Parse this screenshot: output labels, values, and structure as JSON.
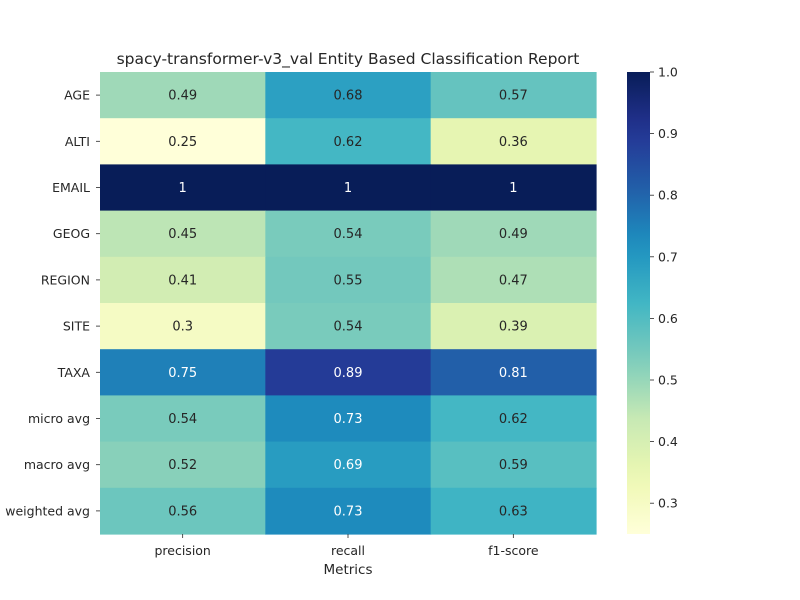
{
  "chart_data": {
    "type": "heatmap",
    "title": "spacy-transformer-v3_val Entity Based Classification Report",
    "xlabel": "Metrics",
    "ylabel": "",
    "columns": [
      "precision",
      "recall",
      "f1-score"
    ],
    "rows": [
      "AGE",
      "ALTI",
      "EMAIL",
      "GEOG",
      "REGION",
      "SITE",
      "TAXA",
      "micro avg",
      "macro avg",
      "weighted avg"
    ],
    "values": [
      [
        0.49,
        0.68,
        0.57
      ],
      [
        0.25,
        0.62,
        0.36
      ],
      [
        1,
        1,
        1
      ],
      [
        0.45,
        0.54,
        0.49
      ],
      [
        0.41,
        0.55,
        0.47
      ],
      [
        0.3,
        0.54,
        0.39
      ],
      [
        0.75,
        0.89,
        0.81
      ],
      [
        0.54,
        0.73,
        0.62
      ],
      [
        0.52,
        0.69,
        0.59
      ],
      [
        0.56,
        0.73,
        0.63
      ]
    ],
    "annotations": [
      [
        "0.49",
        "0.68",
        "0.57"
      ],
      [
        "0.25",
        "0.62",
        "0.36"
      ],
      [
        "1",
        "1",
        "1"
      ],
      [
        "0.45",
        "0.54",
        "0.49"
      ],
      [
        "0.41",
        "0.55",
        "0.47"
      ],
      [
        "0.3",
        "0.54",
        "0.39"
      ],
      [
        "0.75",
        "0.89",
        "0.81"
      ],
      [
        "0.54",
        "0.73",
        "0.62"
      ],
      [
        "0.52",
        "0.69",
        "0.59"
      ],
      [
        "0.56",
        "0.73",
        "0.63"
      ]
    ],
    "colormap": "YlGnBu",
    "colorbar": {
      "range": [
        0.25,
        1.0
      ],
      "ticks": [
        "0.3",
        "0.4",
        "0.5",
        "0.6",
        "0.7",
        "0.8",
        "0.9",
        "1.0"
      ]
    }
  }
}
